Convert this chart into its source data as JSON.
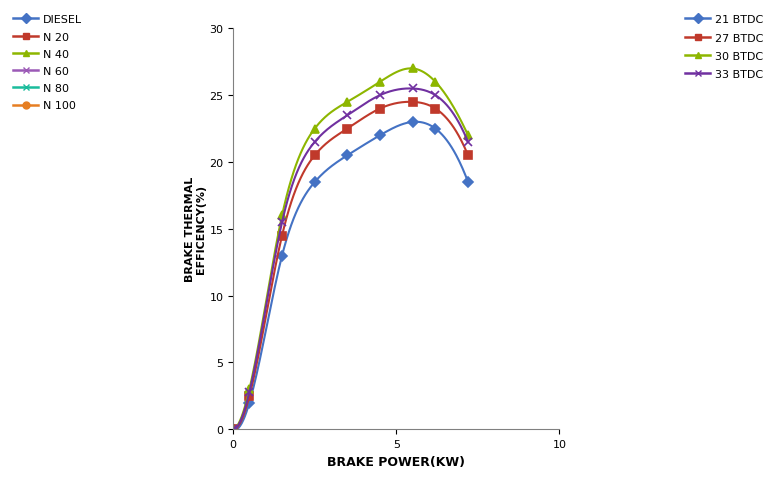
{
  "xlabel": "BRAKE POWER(KW)",
  "ylabel": "BRAKE THERMAL\nEFFICENCY(%)",
  "xlim": [
    0,
    10
  ],
  "ylim": [
    0,
    30
  ],
  "xticks": [
    0,
    5,
    10
  ],
  "yticks": [
    0,
    5,
    10,
    15,
    20,
    25,
    30
  ],
  "series": [
    {
      "label": "21 BTDC",
      "color": "#4472C4",
      "marker": "D",
      "markersize": 5,
      "x": [
        0,
        0.5,
        1.5,
        2.5,
        3.5,
        4.5,
        5.5,
        6.2,
        7.2
      ],
      "y": [
        0,
        2.0,
        13.0,
        18.5,
        20.5,
        22.0,
        23.0,
        22.5,
        18.5
      ]
    },
    {
      "label": "27 BTDC",
      "color": "#C0392B",
      "marker": "s",
      "markersize": 6,
      "x": [
        0,
        0.5,
        1.5,
        2.5,
        3.5,
        4.5,
        5.5,
        6.2,
        7.2
      ],
      "y": [
        0,
        2.5,
        14.5,
        20.5,
        22.5,
        24.0,
        24.5,
        24.0,
        20.5
      ]
    },
    {
      "label": "30 BTDC",
      "color": "#8DB600",
      "marker": "^",
      "markersize": 6,
      "x": [
        0,
        0.5,
        1.5,
        2.5,
        3.5,
        4.5,
        5.5,
        6.2,
        7.2
      ],
      "y": [
        0,
        3.0,
        16.0,
        22.5,
        24.5,
        26.0,
        27.0,
        26.0,
        22.0
      ]
    },
    {
      "label": "33 BTDC",
      "color": "#7030A0",
      "marker": "x",
      "markersize": 6,
      "x": [
        0,
        0.5,
        1.5,
        2.5,
        3.5,
        4.5,
        5.5,
        6.2,
        7.2
      ],
      "y": [
        0,
        2.8,
        15.5,
        21.5,
        23.5,
        25.0,
        25.5,
        25.0,
        21.5
      ]
    }
  ],
  "left_legend": [
    {
      "label": "DIESEL",
      "color": "#4472C4",
      "marker": "D",
      "lw": 1.8
    },
    {
      "label": "N 20",
      "color": "#C0392B",
      "marker": "s",
      "lw": 1.8
    },
    {
      "label": "N 40",
      "color": "#8DB600",
      "marker": "^",
      "lw": 1.8
    },
    {
      "label": "N 60",
      "color": "#9B59B6",
      "marker": "x",
      "lw": 1.8
    },
    {
      "label": "N 80",
      "color": "#1ABC9C",
      "marker": "x",
      "lw": 1.8
    },
    {
      "label": "N 100",
      "color": "#E67E22",
      "marker": "o",
      "lw": 1.8
    }
  ],
  "right_legend": [
    {
      "label": "21 BTDC",
      "color": "#4472C4",
      "marker": "D"
    },
    {
      "label": "27 BTDC",
      "color": "#C0392B",
      "marker": "s"
    },
    {
      "label": "30 BTDC",
      "color": "#8DB600",
      "marker": "^"
    },
    {
      "label": "33 BTDC",
      "color": "#7030A0",
      "marker": "x"
    }
  ]
}
